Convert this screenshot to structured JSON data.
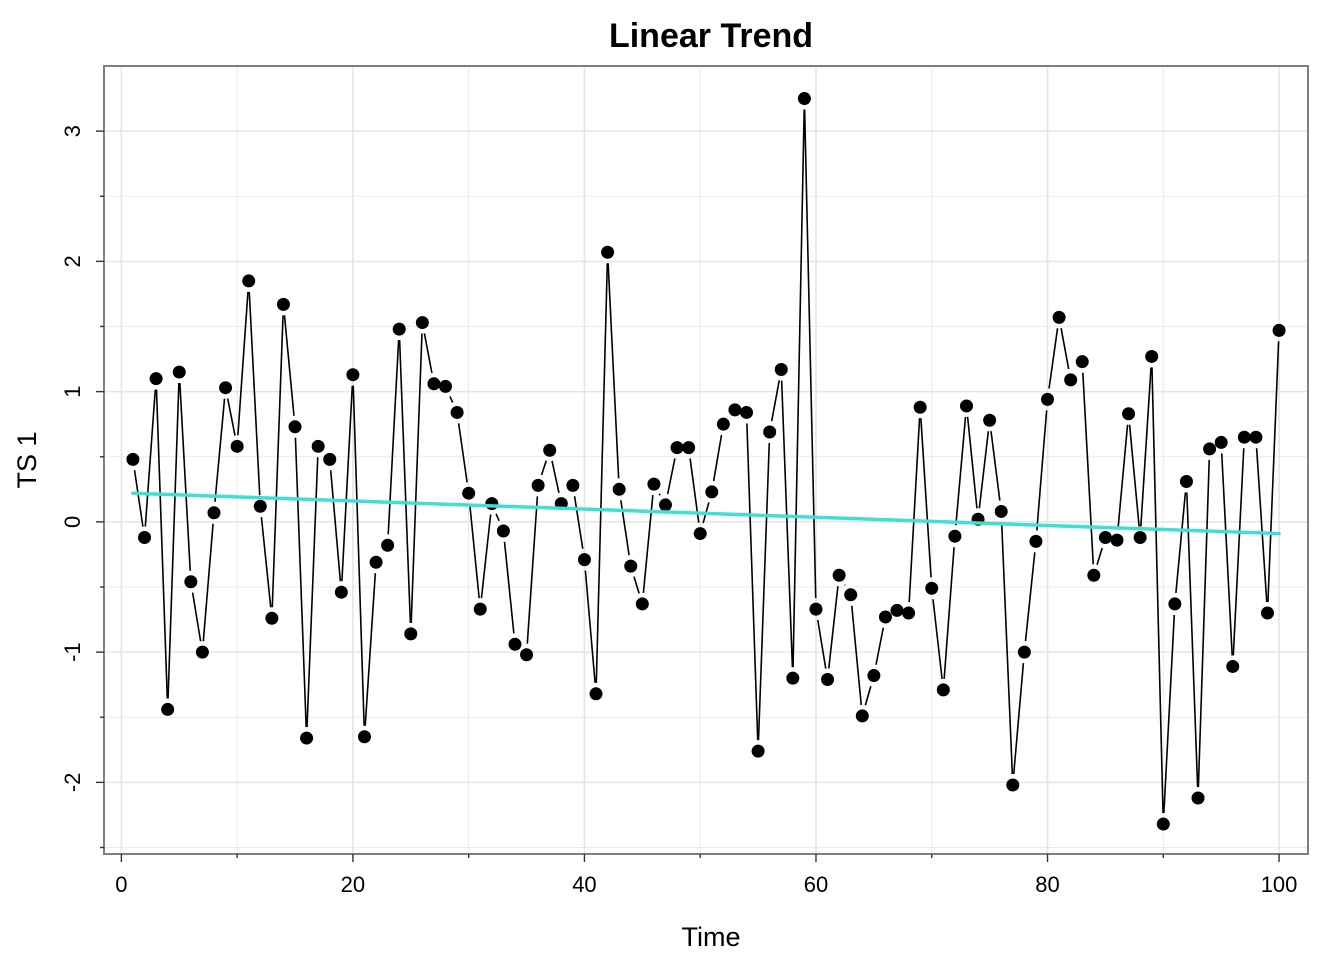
{
  "chart_data": {
    "type": "line",
    "title": "Linear Trend",
    "xlabel": "Time",
    "ylabel": "TS 1",
    "xlim": [
      -1.5,
      102.5
    ],
    "ylim": [
      -2.55,
      3.5
    ],
    "grid": true,
    "x_ticks": [
      0,
      20,
      40,
      60,
      80,
      100
    ],
    "x_tick_labels": [
      "0",
      "20",
      "40",
      "60",
      "80",
      "100"
    ],
    "y_ticks": [
      -2,
      -1,
      0,
      1,
      2,
      3
    ],
    "y_tick_labels": [
      "-2",
      "-1",
      "0",
      "1",
      "2",
      "3"
    ],
    "colors": {
      "series": "#000000",
      "trend": "#40E0D0",
      "grid": "#E5E5E5",
      "panel_border": "#7F7F7F"
    },
    "series": [
      {
        "x": [
          1,
          2,
          3,
          4,
          5,
          6,
          7,
          8,
          9,
          10,
          11,
          12,
          13,
          14,
          15,
          16,
          17,
          18,
          19,
          20,
          21,
          22,
          23,
          24,
          25,
          26,
          27,
          28,
          29,
          30,
          31,
          32,
          33,
          34,
          35,
          36,
          37,
          38,
          39,
          40,
          41,
          42,
          43,
          44,
          45,
          46,
          47,
          48,
          49,
          50,
          51,
          52,
          53,
          54,
          55,
          56,
          57,
          58,
          59,
          60,
          61,
          62,
          63,
          64,
          65,
          66,
          67,
          68,
          69,
          70,
          71,
          72,
          73,
          74,
          75,
          76,
          77,
          78,
          79,
          80,
          81,
          82,
          83,
          84,
          85,
          86,
          87,
          88,
          89,
          90,
          91,
          92,
          93,
          94,
          95,
          96,
          97,
          98,
          99,
          100
        ],
        "values": [
          0.48,
          -0.12,
          1.1,
          -1.44,
          1.15,
          -0.46,
          -1.0,
          0.07,
          1.03,
          0.58,
          1.85,
          0.12,
          -0.74,
          1.67,
          0.73,
          -1.66,
          0.58,
          0.48,
          -0.54,
          1.13,
          -1.65,
          -0.31,
          -0.18,
          1.48,
          -0.86,
          1.53,
          1.06,
          1.04,
          0.84,
          0.22,
          -0.67,
          0.14,
          -0.07,
          -0.94,
          -1.02,
          0.28,
          0.55,
          0.14,
          0.28,
          -0.29,
          -1.32,
          2.07,
          0.25,
          -0.34,
          -0.63,
          0.29,
          0.13,
          0.57,
          0.57,
          -0.09,
          0.23,
          0.75,
          0.86,
          0.84,
          -1.76,
          0.69,
          1.17,
          -1.2,
          3.25,
          -0.67,
          -1.21,
          -0.41,
          -0.56,
          -1.49,
          -1.18,
          -0.73,
          -0.68,
          -0.7,
          0.88,
          -0.51,
          -1.29,
          -0.11,
          0.89,
          0.02,
          0.78,
          0.08,
          -2.02,
          -1.0,
          -0.15,
          0.94,
          1.57,
          1.09,
          1.23,
          -0.41,
          -0.12,
          -0.14,
          0.83,
          -0.12,
          1.27,
          -2.32,
          -0.63,
          0.31,
          -2.12,
          0.56,
          0.61,
          -1.11,
          0.65,
          0.65,
          -0.7,
          1.47
        ]
      },
      {
        "x": [
          1,
          100
        ],
        "values": [
          0.22,
          -0.09
        ]
      }
    ]
  }
}
